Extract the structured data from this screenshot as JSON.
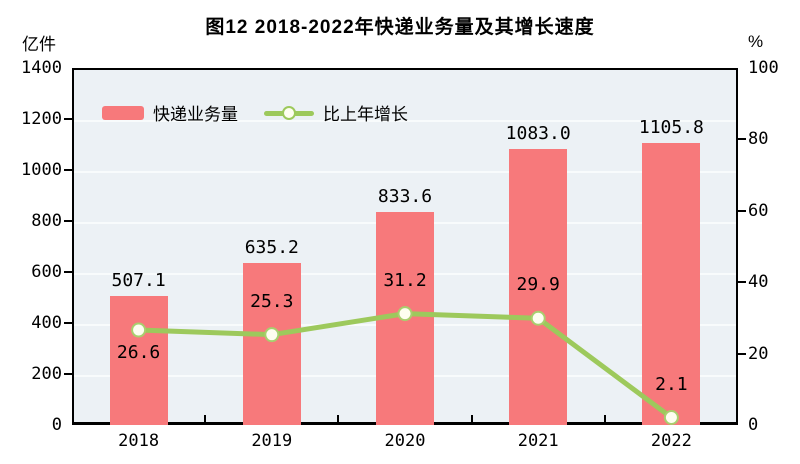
{
  "title": "图12  2018-2022年快递业务量及其增长速度",
  "left_axis_unit": "亿件",
  "right_axis_unit": "%",
  "legend": {
    "bar_label": "快递业务量",
    "line_label": "比上年增长"
  },
  "colors": {
    "bar": "#F7797B",
    "line": "#9DC95C",
    "marker_fill": "#FEFEF0",
    "marker_stroke": "#A8CF6E",
    "plot_bg": "#ECF1F5",
    "gridline": "#F8FBFC",
    "axis": "#000000",
    "text": "#000000"
  },
  "chart_data": {
    "type": "combo",
    "title": "图12  2018-2022年快递业务量及其增长速度",
    "categories": [
      "2018",
      "2019",
      "2020",
      "2021",
      "2022"
    ],
    "series": [
      {
        "name": "快递业务量",
        "type": "bar",
        "axis": "left",
        "unit": "亿件",
        "values": [
          507.1,
          635.2,
          833.6,
          1083.0,
          1105.8
        ],
        "labels": [
          "507.1",
          "635.2",
          "833.6",
          "1083.0",
          "1105.8"
        ]
      },
      {
        "name": "比上年增长",
        "type": "line",
        "axis": "right",
        "unit": "%",
        "values": [
          26.6,
          25.3,
          31.2,
          29.9,
          2.1
        ],
        "labels": [
          "26.6",
          "25.3",
          "31.2",
          "29.9",
          "2.1"
        ],
        "label_positions": [
          "below",
          "above",
          "above",
          "above",
          "above"
        ]
      }
    ],
    "left_axis": {
      "min": 0,
      "max": 1400,
      "step": 200,
      "ticks": [
        "0",
        "200",
        "400",
        "600",
        "800",
        "1000",
        "1200",
        "1400"
      ],
      "unit": "亿件"
    },
    "right_axis": {
      "min": 0,
      "max": 100,
      "step": 20,
      "ticks": [
        "0",
        "20",
        "40",
        "60",
        "80",
        "100"
      ],
      "unit": "%"
    },
    "grid": true,
    "legend_position": "top-left-inside"
  }
}
